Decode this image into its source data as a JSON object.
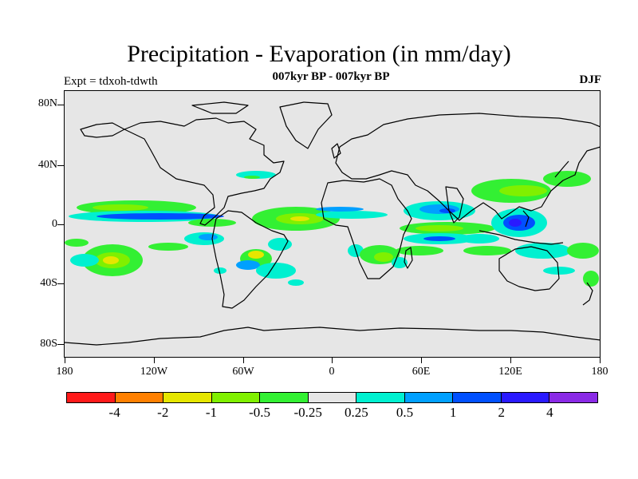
{
  "title": "Precipitation - Evaporation (in mm/day)",
  "subtitle": "007kyr BP - 007kyr BP",
  "experiment": "Expt = tdxoh-tdwth",
  "season": "DJF",
  "map": {
    "lat_labels": [
      "80N",
      "40N",
      "0",
      "40S",
      "80S"
    ],
    "lon_labels": [
      "180",
      "120W",
      "60W",
      "0",
      "60E",
      "120E",
      "180"
    ]
  },
  "colorbar": {
    "colors": [
      "#ff1a1a",
      "#ff8000",
      "#e6e600",
      "#80f000",
      "#33f033",
      "#e6e6e6",
      "#00f0d0",
      "#00a0ff",
      "#0050ff",
      "#2a1aff",
      "#8a2ae6"
    ],
    "labels": [
      "-4",
      "-2",
      "-1",
      "-0.5",
      "-0.25",
      "0.25",
      "0.5",
      "1",
      "2",
      "4"
    ]
  },
  "chart_data": {
    "type": "heatmap",
    "title": "Precipitation - Evaporation (in mm/day)",
    "subtitle": "007kyr BP - 007kyr BP",
    "x_ticks": [
      "180",
      "120W",
      "60W",
      "0",
      "60E",
      "120E",
      "180"
    ],
    "y_ticks": [
      "80N",
      "40N",
      "0",
      "40S",
      "80S"
    ],
    "xlim": [
      -180,
      180
    ],
    "ylim": [
      -90,
      90
    ],
    "levels": [
      -4,
      -2,
      -1,
      -0.5,
      -0.25,
      0.25,
      0.5,
      1,
      2,
      4
    ],
    "background": "#e6e6e6"
  }
}
